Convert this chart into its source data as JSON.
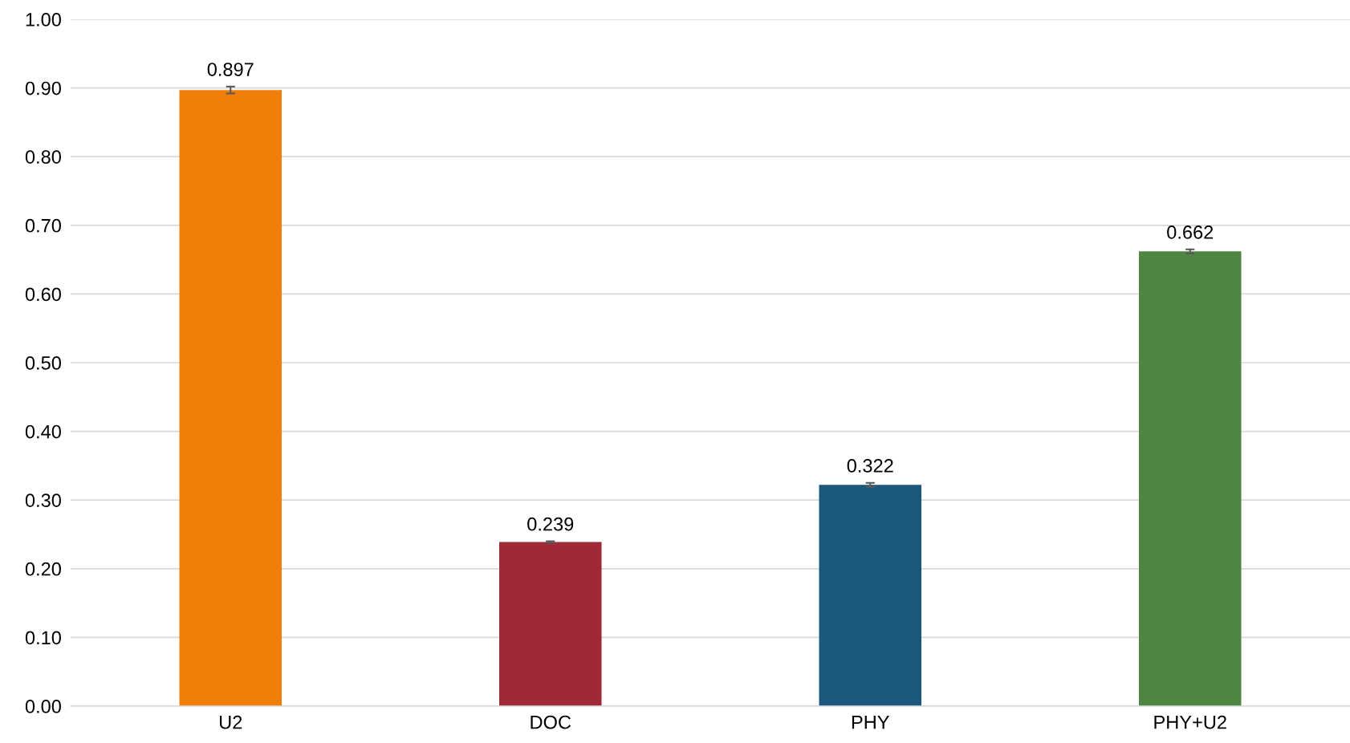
{
  "chart_data": {
    "type": "bar",
    "categories": [
      "U2",
      "DOC",
      "PHY",
      "PHY+U2"
    ],
    "values": [
      0.897,
      0.239,
      0.322,
      0.662
    ],
    "colors": [
      "#f07f09",
      "#9f2936",
      "#1b587c",
      "#4e8542"
    ],
    "errors": [
      0.005,
      0.001,
      0.003,
      0.003
    ],
    "data_labels": true,
    "ylim": [
      0,
      1.0
    ],
    "yticks": [
      {
        "value": 0,
        "label": "0.00"
      },
      {
        "value": 0.1,
        "label": "0.10"
      },
      {
        "value": 0.2,
        "label": "0.20"
      },
      {
        "value": 0.3,
        "label": "0.30"
      },
      {
        "value": 0.4,
        "label": "0.40"
      },
      {
        "value": 0.5,
        "label": "0.50"
      },
      {
        "value": 0.6,
        "label": "0.60"
      },
      {
        "value": 0.7,
        "label": "0.70"
      },
      {
        "value": 0.8,
        "label": "0.80"
      },
      {
        "value": 0.9,
        "label": "0.90"
      },
      {
        "value": 1.0,
        "label": "1.00"
      }
    ],
    "grid": "y"
  }
}
